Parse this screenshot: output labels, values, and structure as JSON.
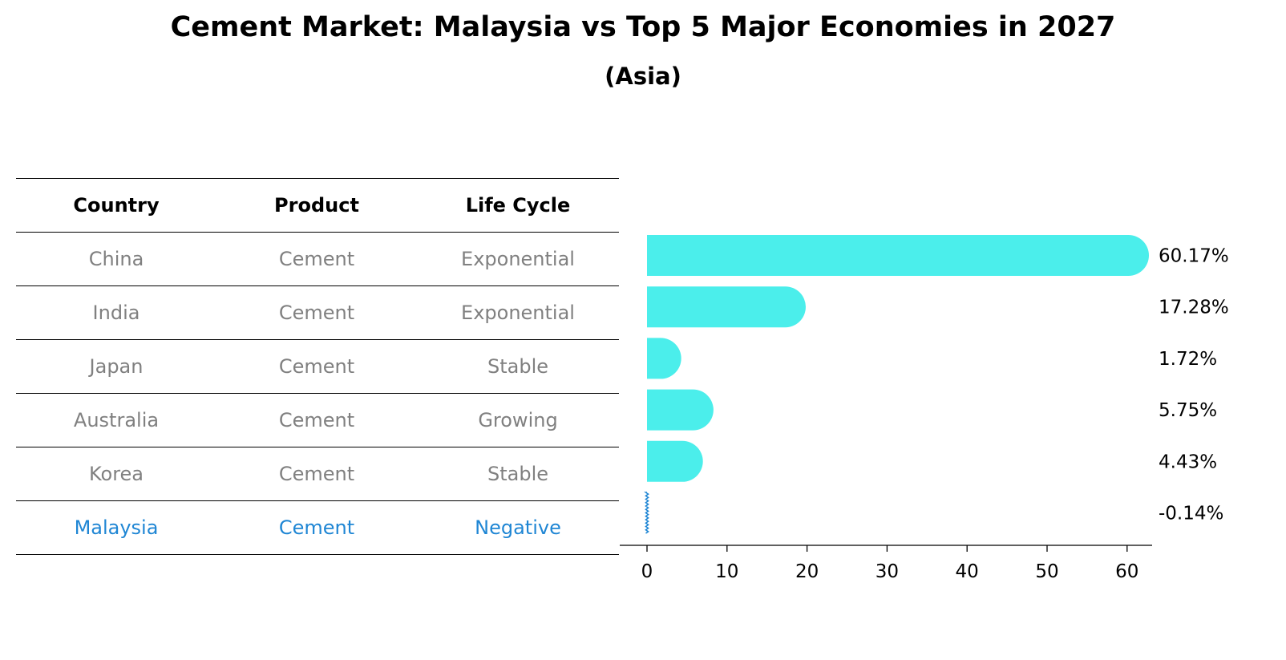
{
  "title": "Cement Market: Malaysia vs Top 5 Major Economies in 2027",
  "subtitle": "(Asia)",
  "table": {
    "headers": [
      "Country",
      "Product",
      "Life Cycle"
    ],
    "rows": [
      [
        "China",
        "Cement",
        "Exponential"
      ],
      [
        "India",
        "Cement",
        "Exponential"
      ],
      [
        "Japan",
        "Cement",
        "Stable"
      ],
      [
        "Australia",
        "Cement",
        "Growing"
      ],
      [
        "Korea",
        "Cement",
        "Stable"
      ],
      [
        "Malaysia",
        "Cement",
        "Negative"
      ]
    ],
    "highlight_row": "Malaysia"
  },
  "colors": {
    "bar": "#4beeeb",
    "highlight": "#1f86d4",
    "muted_text": "#808080"
  },
  "chart_data": {
    "type": "bar",
    "orientation": "horizontal",
    "categories": [
      "China",
      "India",
      "Japan",
      "Australia",
      "Korea",
      "Malaysia"
    ],
    "values": [
      60.17,
      17.28,
      1.72,
      5.75,
      4.43,
      -0.14
    ],
    "value_labels": [
      "60.17%",
      "17.28%",
      "1.72%",
      "5.75%",
      "4.43%",
      "-0.14%"
    ],
    "xticks": [
      "0",
      "10",
      "20",
      "30",
      "40",
      "50",
      "60"
    ],
    "xlim": [
      -3.2,
      63.1
    ],
    "grid": false,
    "legend": "none"
  }
}
